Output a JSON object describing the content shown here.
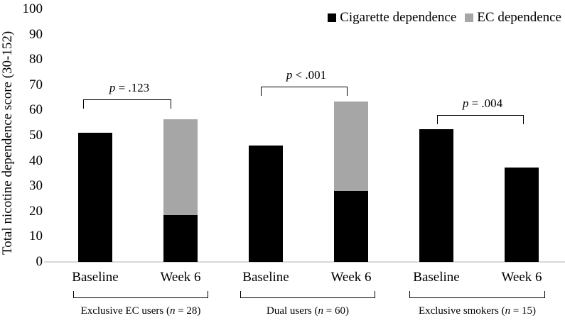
{
  "chart_data": {
    "type": "bar",
    "stacked": true,
    "title": "",
    "ylabel": "Total nicotine dependence score (30-152)",
    "xlabel": "",
    "ylim": [
      0,
      100
    ],
    "yticks": [
      0,
      10,
      20,
      30,
      40,
      50,
      60,
      70,
      80,
      90,
      100
    ],
    "grid": false,
    "legend_position": "top-right",
    "axis_line_color": "#d9d9d9",
    "series": [
      {
        "name": "Cigarette dependence",
        "color": "#000000"
      },
      {
        "name": "EC dependence",
        "color": "#a6a6a6"
      }
    ],
    "groups": [
      {
        "label_pre": "Exclusive EC users (",
        "label_var": "n",
        "label_post": " = 28)",
        "p_var": "p",
        "p_rest": " = .123",
        "bars": [
          {
            "label": "Baseline",
            "cigarette": 51,
            "ec": 0
          },
          {
            "label": "Week 6",
            "cigarette": 18.5,
            "ec": 38
          }
        ]
      },
      {
        "label_pre": "Dual users (",
        "label_var": "n",
        "label_post": " = 60)",
        "p_var": "p",
        "p_rest": " < .001",
        "bars": [
          {
            "label": "Baseline",
            "cigarette": 46,
            "ec": 0
          },
          {
            "label": "Week 6",
            "cigarette": 28,
            "ec": 35.5
          }
        ]
      },
      {
        "label_pre": "Exclusive smokers (",
        "label_var": "n",
        "label_post": " = 15)",
        "p_var": "p",
        "p_rest": " = .004",
        "bars": [
          {
            "label": "Baseline",
            "cigarette": 52.5,
            "ec": 0
          },
          {
            "label": "Week 6",
            "cigarette": 37.5,
            "ec": 0
          }
        ]
      }
    ]
  }
}
